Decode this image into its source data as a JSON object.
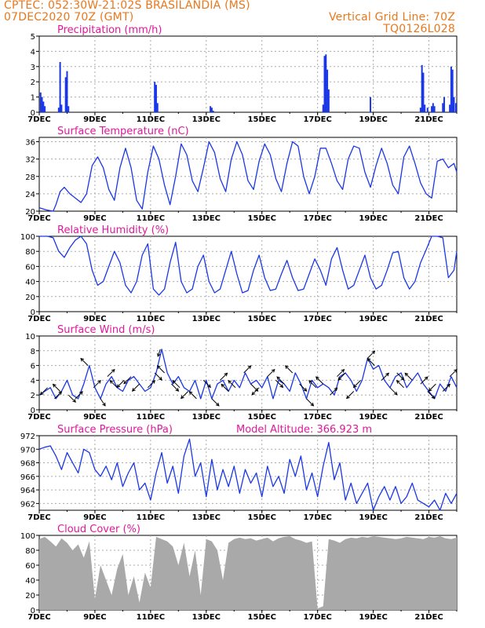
{
  "header": {
    "line1": "CPTEC:   052:30W-21:02S   BRASILANDIA (MS)",
    "line2": "07DEC2020 70Z (GMT)",
    "grid_note": "Vertical Grid Line: 70Z",
    "code": "TQ0126L028"
  },
  "colors": {
    "series": "#1a37e6",
    "title": "#e0189a",
    "header": "#e8781c",
    "grid": "#aaaaaa",
    "cloud_fill": "#a9a9a9",
    "precip_bar": "#1a37e6",
    "wind_arrow": "#000000"
  },
  "x_axis": {
    "start_day": 7,
    "end_day": 22,
    "ticks": [
      7,
      9,
      11,
      13,
      15,
      17,
      19,
      21
    ],
    "tick_labels": [
      "7DEC",
      "9DEC",
      "11DEC",
      "13DEC",
      "15DEC",
      "17DEC",
      "19DEC",
      "21DEC"
    ]
  },
  "chart_data": [
    {
      "id": "precip",
      "type": "bar",
      "title": "Precipitation (mm/h)",
      "ylim": [
        0,
        5
      ],
      "yticks": [
        0,
        1,
        2,
        3,
        4,
        5
      ],
      "x": [
        7.05,
        7.1,
        7.15,
        7.2,
        7.7,
        7.75,
        7.8,
        7.95,
        8.0,
        8.05,
        11.15,
        11.2,
        11.25,
        13.15,
        13.2,
        13.25,
        17.2,
        17.25,
        17.3,
        17.35,
        17.4,
        18.9,
        20.7,
        20.75,
        20.8,
        20.85,
        20.95,
        21.1,
        21.15,
        21.2,
        21.5,
        21.55,
        21.75,
        21.8,
        21.85,
        21.9,
        21.97
      ],
      "values": [
        1.3,
        1.0,
        0.7,
        0.4,
        0.3,
        3.3,
        0.5,
        2.3,
        2.7,
        0.4,
        2.0,
        1.8,
        0.6,
        0.4,
        0.3,
        0.1,
        0.5,
        3.7,
        3.8,
        2.8,
        1.5,
        1.0,
        0.3,
        3.1,
        2.6,
        0.5,
        0.3,
        0.4,
        0.6,
        0.4,
        0.6,
        1.0,
        0.5,
        3.0,
        2.8,
        1.0,
        0.6
      ]
    },
    {
      "id": "temp",
      "type": "line",
      "title": "Surface Temperature (nC)",
      "ylim": [
        20,
        37
      ],
      "yticks": [
        20,
        24,
        28,
        32,
        36
      ],
      "x": [
        7.0,
        7.25,
        7.5,
        7.6,
        7.75,
        7.9,
        8.1,
        8.3,
        8.5,
        8.7,
        8.9,
        9.1,
        9.3,
        9.5,
        9.7,
        9.9,
        10.1,
        10.3,
        10.5,
        10.7,
        10.9,
        11.1,
        11.3,
        11.5,
        11.7,
        11.9,
        12.1,
        12.3,
        12.5,
        12.7,
        12.9,
        13.1,
        13.3,
        13.5,
        13.7,
        13.9,
        14.1,
        14.3,
        14.5,
        14.7,
        14.9,
        15.1,
        15.3,
        15.5,
        15.7,
        15.9,
        16.1,
        16.3,
        16.5,
        16.7,
        16.9,
        17.1,
        17.3,
        17.5,
        17.7,
        17.9,
        18.1,
        18.3,
        18.5,
        18.7,
        18.9,
        19.1,
        19.3,
        19.5,
        19.7,
        19.9,
        20.1,
        20.3,
        20.5,
        20.7,
        20.9,
        21.1,
        21.3,
        21.5,
        21.7,
        21.9,
        22.0
      ],
      "values": [
        20.8,
        20.3,
        20.0,
        21.5,
        24.5,
        25.5,
        24.0,
        23.0,
        22.0,
        24.0,
        30.5,
        32.5,
        30.0,
        25.0,
        22.5,
        30.0,
        34.5,
        30.0,
        22.5,
        20.5,
        29.0,
        35.0,
        32.0,
        26.0,
        21.5,
        28.0,
        35.5,
        33.0,
        27.0,
        24.5,
        30.0,
        36.0,
        33.5,
        27.5,
        24.5,
        32.0,
        36.0,
        33.0,
        27.0,
        25.0,
        31.5,
        35.5,
        33.0,
        27.5,
        24.5,
        31.0,
        36.0,
        35.0,
        28.0,
        24.0,
        28.0,
        34.5,
        34.5,
        31.0,
        27.0,
        25.0,
        32.0,
        35.0,
        34.5,
        29.0,
        25.5,
        30.5,
        34.5,
        31.0,
        26.0,
        24.0,
        32.5,
        35.0,
        31.0,
        26.5,
        24.0,
        23.0,
        31.5,
        32.0,
        30.0,
        31.0,
        29.0
      ]
    },
    {
      "id": "rh",
      "type": "line",
      "title": "Relative Humidity (%)",
      "ylim": [
        0,
        100
      ],
      "yticks": [
        0,
        20,
        40,
        60,
        80,
        100
      ],
      "x": [
        7.0,
        7.3,
        7.5,
        7.7,
        7.9,
        8.1,
        8.3,
        8.5,
        8.7,
        8.9,
        9.1,
        9.3,
        9.5,
        9.7,
        9.9,
        10.1,
        10.3,
        10.5,
        10.7,
        10.9,
        11.1,
        11.3,
        11.5,
        11.7,
        11.9,
        12.1,
        12.3,
        12.5,
        12.7,
        12.9,
        13.1,
        13.3,
        13.5,
        13.7,
        13.9,
        14.1,
        14.3,
        14.5,
        14.7,
        14.9,
        15.1,
        15.3,
        15.5,
        15.7,
        15.9,
        16.1,
        16.3,
        16.5,
        16.7,
        16.9,
        17.1,
        17.3,
        17.5,
        17.7,
        17.9,
        18.1,
        18.3,
        18.5,
        18.7,
        18.9,
        19.1,
        19.3,
        19.5,
        19.7,
        19.9,
        20.1,
        20.3,
        20.5,
        20.7,
        20.9,
        21.1,
        21.3,
        21.5,
        21.7,
        21.9,
        22.0
      ],
      "values": [
        100,
        100,
        98,
        80,
        72,
        85,
        95,
        100,
        90,
        55,
        35,
        40,
        60,
        80,
        65,
        35,
        25,
        40,
        75,
        90,
        30,
        22,
        30,
        65,
        92,
        40,
        25,
        30,
        60,
        75,
        40,
        25,
        30,
        55,
        80,
        50,
        25,
        28,
        55,
        75,
        45,
        28,
        30,
        50,
        68,
        45,
        28,
        30,
        50,
        70,
        55,
        35,
        70,
        85,
        55,
        30,
        35,
        55,
        75,
        45,
        30,
        35,
        55,
        78,
        80,
        45,
        30,
        40,
        65,
        82,
        100,
        100,
        98,
        45,
        55,
        80
      ]
    },
    {
      "id": "wind",
      "type": "line",
      "title": "Surface Wind (m/s)",
      "ylim": [
        0,
        10
      ],
      "yticks": [
        0,
        2,
        4,
        6,
        8,
        10
      ],
      "x": [
        7.0,
        7.2,
        7.4,
        7.6,
        7.8,
        8.0,
        8.2,
        8.4,
        8.6,
        8.8,
        9.0,
        9.2,
        9.4,
        9.6,
        9.8,
        10.0,
        10.2,
        10.4,
        10.6,
        10.8,
        11.0,
        11.2,
        11.4,
        11.6,
        11.8,
        12.0,
        12.2,
        12.4,
        12.6,
        12.8,
        13.0,
        13.2,
        13.4,
        13.6,
        13.8,
        14.0,
        14.2,
        14.4,
        14.6,
        14.8,
        15.0,
        15.2,
        15.4,
        15.6,
        15.8,
        16.0,
        16.2,
        16.4,
        16.6,
        16.8,
        17.0,
        17.2,
        17.4,
        17.6,
        17.8,
        18.0,
        18.2,
        18.4,
        18.6,
        18.8,
        19.0,
        19.2,
        19.4,
        19.6,
        19.8,
        20.0,
        20.2,
        20.4,
        20.6,
        20.8,
        21.0,
        21.2,
        21.4,
        21.6,
        21.8,
        22.0
      ],
      "values": [
        2.0,
        2.5,
        3.0,
        1.5,
        2.5,
        4.0,
        2.0,
        1.5,
        3.5,
        6.0,
        3.0,
        1.5,
        3.5,
        4.5,
        3.0,
        2.5,
        4.0,
        4.5,
        3.5,
        2.5,
        3.0,
        5.0,
        8.2,
        5.0,
        3.5,
        4.5,
        3.0,
        2.5,
        4.0,
        1.5,
        4.0,
        1.5,
        3.5,
        4.0,
        2.5,
        4.0,
        3.0,
        5.0,
        3.5,
        4.0,
        3.0,
        4.5,
        1.5,
        4.0,
        3.5,
        2.5,
        5.0,
        3.5,
        1.5,
        4.0,
        3.0,
        3.5,
        3.0,
        2.0,
        4.5,
        5.0,
        4.0,
        2.5,
        4.0,
        7.0,
        5.5,
        6.0,
        4.0,
        3.0,
        4.5,
        5.0,
        3.0,
        4.0,
        5.0,
        3.5,
        2.5,
        1.5,
        3.5,
        2.5,
        4.5,
        3.0
      ],
      "arrows_x": [
        7.3,
        7.55,
        7.75,
        8.05,
        8.3,
        8.75,
        8.95,
        9.2,
        9.45,
        9.8,
        10.05,
        10.3,
        10.6,
        10.9,
        11.15,
        11.35,
        11.5,
        11.75,
        12.05,
        12.35,
        12.65,
        12.9,
        13.2,
        13.5,
        13.8,
        14.05,
        14.35,
        14.6,
        14.9,
        15.2,
        15.5,
        15.8,
        16.1,
        16.35,
        16.6,
        16.95,
        17.2,
        17.45,
        17.7,
        18.0,
        18.3,
        18.55,
        18.8,
        19.05,
        19.3,
        19.6,
        19.85,
        20.1,
        20.4,
        20.7,
        20.95,
        21.25,
        21.5,
        21.75
      ],
      "arrows_u": [
        -3,
        3,
        -3,
        3,
        3,
        -3,
        3,
        2,
        3,
        -3,
        -3,
        -3,
        -3,
        3,
        3,
        -1,
        -3,
        3,
        -3,
        -3,
        -3,
        3,
        3,
        3,
        -3,
        -3,
        3,
        3,
        -3,
        3,
        3,
        -3,
        -3,
        3,
        3,
        -3,
        -3,
        3,
        3,
        -3,
        -3,
        -3,
        3,
        -3,
        3,
        3,
        3,
        -3,
        -3,
        3,
        3,
        -3,
        3,
        3
      ],
      "arrows_v": [
        -3,
        3,
        3,
        -3,
        3,
        3,
        3,
        -3,
        3,
        3,
        -3,
        -3,
        -3,
        3,
        -3,
        -3,
        3,
        -3,
        3,
        -3,
        3,
        -3,
        -3,
        3,
        3,
        3,
        3,
        -3,
        -3,
        3,
        -3,
        3,
        3,
        -3,
        -3,
        3,
        3,
        3,
        3,
        -3,
        -3,
        -3,
        3,
        3,
        3,
        -3,
        -3,
        3,
        3,
        3,
        -3,
        -3,
        3,
        3
      ]
    },
    {
      "id": "pressure",
      "type": "line",
      "title": "Surface Pressure (hPa)",
      "subtitle": "Model Altitude: 366.923 m",
      "ylim": [
        961,
        972
      ],
      "yticks": [
        962,
        964,
        966,
        968,
        970,
        972
      ],
      "x": [
        7.0,
        7.2,
        7.4,
        7.6,
        7.8,
        8.0,
        8.2,
        8.4,
        8.6,
        8.8,
        9.0,
        9.2,
        9.4,
        9.6,
        9.8,
        10.0,
        10.2,
        10.4,
        10.6,
        10.8,
        11.0,
        11.2,
        11.4,
        11.6,
        11.8,
        12.0,
        12.2,
        12.4,
        12.6,
        12.8,
        13.0,
        13.2,
        13.4,
        13.6,
        13.8,
        14.0,
        14.2,
        14.4,
        14.6,
        14.8,
        15.0,
        15.2,
        15.4,
        15.6,
        15.8,
        16.0,
        16.2,
        16.4,
        16.6,
        16.8,
        17.0,
        17.2,
        17.4,
        17.6,
        17.8,
        18.0,
        18.2,
        18.4,
        18.6,
        18.8,
        19.0,
        19.2,
        19.4,
        19.6,
        19.8,
        20.0,
        20.2,
        20.4,
        20.6,
        20.8,
        21.0,
        21.2,
        21.4,
        21.6,
        21.8,
        22.0
      ],
      "values": [
        970.0,
        970.3,
        970.5,
        969.0,
        967.0,
        969.5,
        968.0,
        966.5,
        970.0,
        969.5,
        967.0,
        966.0,
        967.5,
        965.5,
        968.0,
        964.5,
        966.5,
        968.0,
        964.0,
        965.0,
        962.5,
        966.5,
        969.5,
        965.0,
        967.5,
        963.5,
        969.0,
        971.5,
        966.0,
        968.0,
        963.0,
        968.5,
        964.0,
        967.0,
        964.5,
        967.5,
        963.5,
        967.0,
        965.0,
        966.5,
        963.0,
        967.5,
        964.5,
        966.0,
        963.5,
        968.5,
        966.0,
        969.0,
        964.0,
        966.5,
        963.0,
        967.5,
        971.0,
        965.5,
        968.0,
        962.5,
        965.0,
        962.0,
        963.5,
        965.0,
        961.0,
        963.0,
        964.5,
        962.5,
        964.5,
        962.0,
        963.0,
        965.0,
        962.5,
        962.0,
        961.5,
        962.5,
        961.0,
        963.5,
        962.0,
        963.5
      ]
    },
    {
      "id": "cloud",
      "type": "area",
      "title": "Cloud Cover (%)",
      "ylim": [
        0,
        100
      ],
      "yticks": [
        0,
        20,
        40,
        60,
        80,
        100
      ],
      "x": [
        7.0,
        7.2,
        7.4,
        7.6,
        7.8,
        8.0,
        8.2,
        8.4,
        8.6,
        8.8,
        9.0,
        9.2,
        9.4,
        9.6,
        9.8,
        10.0,
        10.2,
        10.4,
        10.6,
        10.8,
        11.0,
        11.2,
        11.4,
        11.6,
        11.8,
        12.0,
        12.2,
        12.4,
        12.6,
        12.8,
        13.0,
        13.2,
        13.4,
        13.6,
        13.8,
        14.0,
        14.2,
        14.4,
        14.6,
        14.8,
        15.0,
        15.2,
        15.4,
        15.6,
        15.8,
        16.0,
        16.2,
        16.4,
        16.6,
        16.8,
        17.0,
        17.2,
        17.4,
        17.6,
        17.8,
        18.0,
        18.2,
        18.4,
        18.6,
        18.8,
        19.0,
        19.2,
        19.4,
        19.6,
        19.8,
        20.0,
        20.2,
        20.4,
        20.6,
        20.8,
        21.0,
        21.2,
        21.4,
        21.6,
        21.8,
        22.0
      ],
      "values": [
        95,
        98,
        92,
        85,
        96,
        90,
        80,
        88,
        70,
        92,
        15,
        60,
        40,
        20,
        55,
        75,
        20,
        45,
        10,
        50,
        30,
        98,
        95,
        92,
        85,
        60,
        90,
        45,
        80,
        20,
        95,
        92,
        80,
        40,
        90,
        95,
        97,
        95,
        96,
        93,
        95,
        97,
        92,
        96,
        98,
        99,
        95,
        93,
        90,
        92,
        2,
        5,
        95,
        93,
        90,
        95,
        97,
        96,
        98,
        97,
        99,
        98,
        97,
        96,
        95,
        96,
        98,
        97,
        96,
        95,
        98,
        97,
        99,
        96,
        95,
        97
      ]
    }
  ]
}
